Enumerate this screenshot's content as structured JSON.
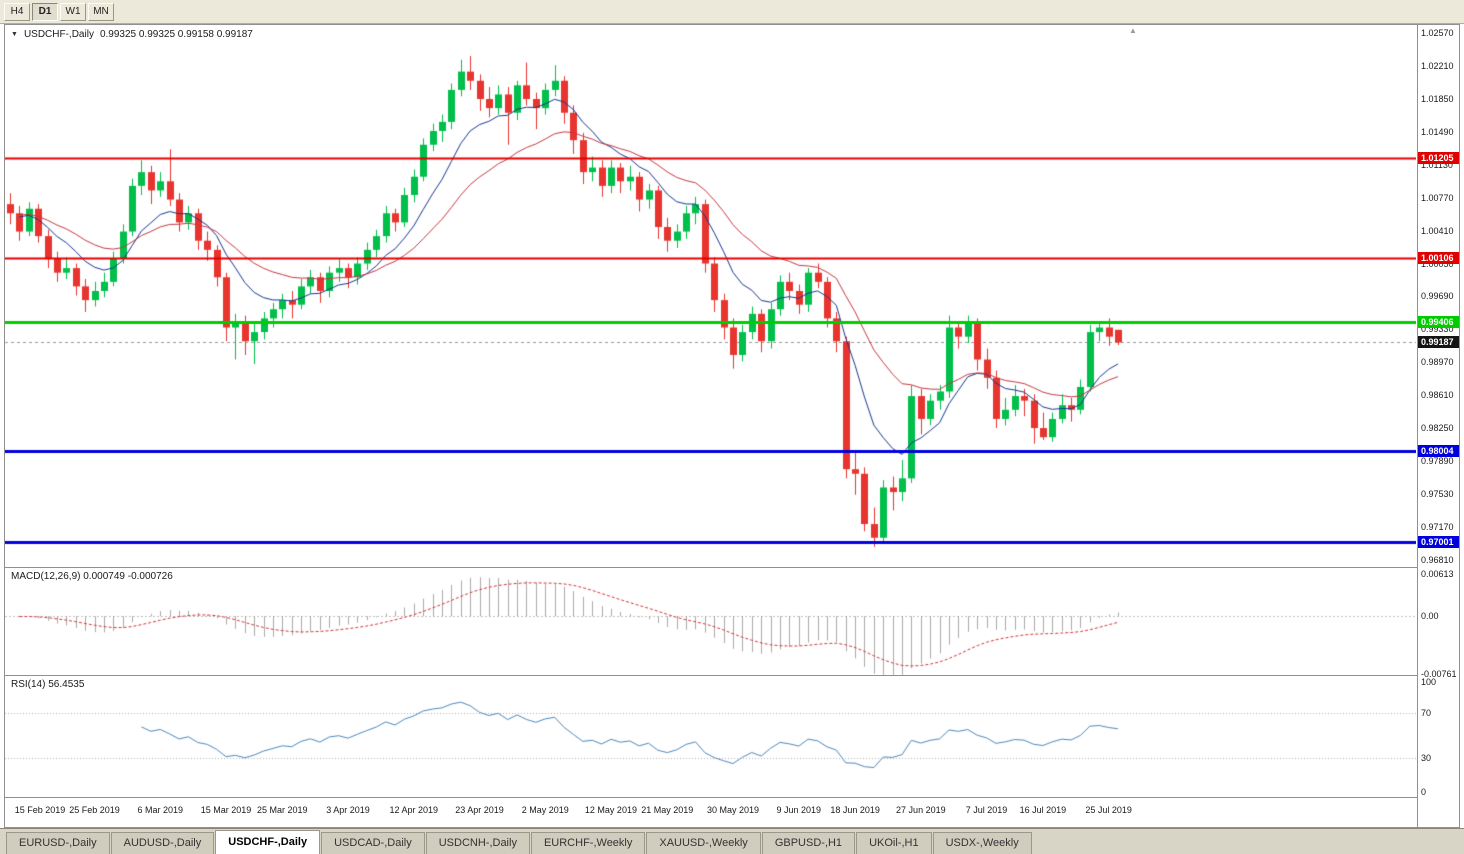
{
  "toolbar": {
    "timeframes": [
      {
        "label": "H4",
        "active": false
      },
      {
        "label": "D1",
        "active": true
      },
      {
        "label": "W1",
        "active": false
      },
      {
        "label": "MN",
        "active": false
      }
    ]
  },
  "icons": {
    "chart_menu": "▼",
    "shift_marker": "▲"
  },
  "chart": {
    "title": "USDCHF-,Daily",
    "ohlc": "0.99325 0.99325 0.99158 0.99187",
    "current_price": "0.99187",
    "current_price_color": "#141414",
    "axis_ticks": [
      "1.02570",
      "1.02210",
      "1.01850",
      "1.01490",
      "1.01130",
      "1.00770",
      "1.00410",
      "1.00050",
      "0.99690",
      "0.99330",
      "0.98970",
      "0.98610",
      "0.98250",
      "0.97890",
      "0.97530",
      "0.97170",
      "0.96810"
    ],
    "levels": [
      {
        "value": 1.01205,
        "label": "1.01205",
        "color": "#e00000",
        "width": 2
      },
      {
        "value": 1.00106,
        "label": "1.00106",
        "color": "#e00000",
        "width": 2
      },
      {
        "value": 0.99406,
        "label": "0.99406",
        "color": "#00cc00",
        "width": 3
      },
      {
        "value": 0.98004,
        "label": "0.98004",
        "color": "#0000dd",
        "width": 3
      },
      {
        "value": 0.97001,
        "label": "0.97001",
        "color": "#0000dd",
        "width": 3
      }
    ],
    "dates": [
      {
        "label": "15 Feb 2019",
        "i": 3
      },
      {
        "label": "25 Feb 2019",
        "i": 9
      },
      {
        "label": "6 Mar 2019",
        "i": 16
      },
      {
        "label": "15 Mar 2019",
        "i": 23
      },
      {
        "label": "25 Mar 2019",
        "i": 29
      },
      {
        "label": "3 Apr 2019",
        "i": 36
      },
      {
        "label": "12 Apr 2019",
        "i": 43
      },
      {
        "label": "23 Apr 2019",
        "i": 50
      },
      {
        "label": "2 May 2019",
        "i": 57
      },
      {
        "label": "12 May 2019",
        "i": 64
      },
      {
        "label": "21 May 2019",
        "i": 70
      },
      {
        "label": "30 May 2019",
        "i": 77
      },
      {
        "label": "9 Jun 2019",
        "i": 84
      },
      {
        "label": "18 Jun 2019",
        "i": 90
      },
      {
        "label": "27 Jun 2019",
        "i": 97
      },
      {
        "label": "7 Jul 2019",
        "i": 104
      },
      {
        "label": "16 Jul 2019",
        "i": 110
      },
      {
        "label": "25 Jul 2019",
        "i": 117
      }
    ]
  },
  "macd": {
    "label": "MACD(12,26,9) 0.000749 -0.000726",
    "ticks": [
      "0.00613",
      "0.00",
      "-0.00761"
    ]
  },
  "rsi": {
    "label": "RSI(14) 56.4535",
    "ticks": [
      "100",
      "70",
      "30",
      "0"
    ]
  },
  "tabs": [
    {
      "label": "EURUSD-,Daily",
      "active": false
    },
    {
      "label": "AUDUSD-,Daily",
      "active": false
    },
    {
      "label": "USDCHF-,Daily",
      "active": true
    },
    {
      "label": "USDCAD-,Daily",
      "active": false
    },
    {
      "label": "USDCNH-,Daily",
      "active": false
    },
    {
      "label": "EURCHF-,Weekly",
      "active": false
    },
    {
      "label": "XAUUSD-,Weekly",
      "active": false
    },
    {
      "label": "GBPUSD-,H1",
      "active": false
    },
    {
      "label": "UKOil-,H1",
      "active": false
    },
    {
      "label": "USDX-,Weekly",
      "active": false
    }
  ],
  "chart_data": {
    "type": "candlestick",
    "symbol": "USDCHF",
    "timeframe": "Daily",
    "ylim": [
      0.9673,
      1.0266
    ],
    "macd_ylim": [
      -0.0078,
      0.0064
    ],
    "rsi_ylim": [
      0,
      100
    ],
    "ma_fast": {
      "period": 9,
      "color": "#18368f"
    },
    "ma_slow": {
      "period": 21,
      "color": "#c43840"
    },
    "macd": {
      "fast": 12,
      "slow": 26,
      "signal": 9
    },
    "rsi_period": 14,
    "colors": {
      "up": "#00bf4a",
      "down": "#e8342e",
      "macd_hist": "#aaaaaa",
      "macd_signal": "#d23535",
      "rsi": "#4c86bc",
      "bid_line": "#9a9a9a"
    },
    "candles": [
      [
        1.007,
        1.0082,
        1.0048,
        1.006
      ],
      [
        1.006,
        1.0068,
        1.003,
        1.004
      ],
      [
        1.004,
        1.0072,
        1.0035,
        1.0065
      ],
      [
        1.0065,
        1.007,
        1.0028,
        1.0035
      ],
      [
        1.0035,
        1.0042,
        1.0,
        1.001
      ],
      [
        1.001,
        1.0018,
        0.9985,
        0.9995
      ],
      [
        0.9995,
        1.0012,
        0.9988,
        1.0
      ],
      [
        1.0,
        1.0005,
        0.997,
        0.998
      ],
      [
        0.998,
        0.9988,
        0.9952,
        0.9965
      ],
      [
        0.9965,
        0.9985,
        0.9958,
        0.9975
      ],
      [
        0.9975,
        0.9995,
        0.9968,
        0.9985
      ],
      [
        0.9985,
        1.0018,
        0.998,
        1.001
      ],
      [
        1.001,
        1.0048,
        1.0005,
        1.004
      ],
      [
        1.004,
        1.0098,
        1.0035,
        1.009
      ],
      [
        1.009,
        1.0118,
        1.008,
        1.0105
      ],
      [
        1.0105,
        1.0112,
        1.007,
        1.0085
      ],
      [
        1.0085,
        1.0105,
        1.0078,
        1.0095
      ],
      [
        1.0095,
        1.013,
        1.0068,
        1.0075
      ],
      [
        1.0075,
        1.0082,
        1.004,
        1.005
      ],
      [
        1.005,
        1.0068,
        1.0042,
        1.006
      ],
      [
        1.006,
        1.0065,
        1.002,
        1.003
      ],
      [
        1.003,
        1.004,
        1.0008,
        1.002
      ],
      [
        1.002,
        1.0025,
        0.998,
        0.999
      ],
      [
        0.999,
        0.9995,
        0.992,
        0.9935
      ],
      [
        0.9935,
        0.995,
        0.99,
        0.994
      ],
      [
        0.994,
        0.9948,
        0.9905,
        0.992
      ],
      [
        0.992,
        0.994,
        0.9895,
        0.993
      ],
      [
        0.993,
        0.9952,
        0.9922,
        0.9945
      ],
      [
        0.9945,
        0.9962,
        0.9935,
        0.9955
      ],
      [
        0.9955,
        0.9972,
        0.9945,
        0.9965
      ],
      [
        0.9965,
        0.9975,
        0.9945,
        0.996
      ],
      [
        0.996,
        0.9988,
        0.9955,
        0.998
      ],
      [
        0.998,
        0.9998,
        0.9972,
        0.999
      ],
      [
        0.999,
        0.9995,
        0.9962,
        0.9975
      ],
      [
        0.9975,
        1.0002,
        0.9968,
        0.9995
      ],
      [
        0.9995,
        1.001,
        0.9985,
        1.0
      ],
      [
        1.0,
        1.0005,
        0.9978,
        0.999
      ],
      [
        0.999,
        1.0012,
        0.9982,
        1.0005
      ],
      [
        1.0005,
        1.0028,
        0.9998,
        1.002
      ],
      [
        1.002,
        1.0042,
        1.0012,
        1.0035
      ],
      [
        1.0035,
        1.0068,
        1.0028,
        1.006
      ],
      [
        1.006,
        1.0065,
        1.004,
        1.005
      ],
      [
        1.005,
        1.0088,
        1.0045,
        1.008
      ],
      [
        1.008,
        1.0108,
        1.0072,
        1.01
      ],
      [
        1.01,
        1.0142,
        1.0095,
        1.0135
      ],
      [
        1.0135,
        1.0158,
        1.0128,
        1.015
      ],
      [
        1.015,
        1.0168,
        1.0138,
        1.016
      ],
      [
        1.016,
        1.0202,
        1.0152,
        1.0195
      ],
      [
        1.0195,
        1.0228,
        1.0188,
        1.0215
      ],
      [
        1.0215,
        1.0232,
        1.0195,
        1.0205
      ],
      [
        1.0205,
        1.0212,
        1.0172,
        1.0185
      ],
      [
        1.0185,
        1.0198,
        1.0165,
        1.0175
      ],
      [
        1.0175,
        1.02,
        1.0168,
        1.019
      ],
      [
        1.019,
        1.0198,
        1.0135,
        1.017
      ],
      [
        1.017,
        1.0205,
        1.0162,
        1.02
      ],
      [
        1.02,
        1.0225,
        1.0178,
        1.0185
      ],
      [
        1.0185,
        1.0192,
        1.0152,
        1.0175
      ],
      [
        1.0175,
        1.0202,
        1.0168,
        1.0195
      ],
      [
        1.0195,
        1.0222,
        1.0188,
        1.0205
      ],
      [
        1.0205,
        1.021,
        1.0158,
        1.017
      ],
      [
        1.017,
        1.0178,
        1.0125,
        1.014
      ],
      [
        1.014,
        1.0148,
        1.0092,
        1.0105
      ],
      [
        1.0105,
        1.0122,
        1.0095,
        1.011
      ],
      [
        1.011,
        1.0118,
        1.0078,
        1.009
      ],
      [
        1.009,
        1.0118,
        1.0082,
        1.011
      ],
      [
        1.011,
        1.0115,
        1.0082,
        1.0095
      ],
      [
        1.0095,
        1.0112,
        1.0085,
        1.01
      ],
      [
        1.01,
        1.0105,
        1.0062,
        1.0075
      ],
      [
        1.0075,
        1.0092,
        1.0065,
        1.0085
      ],
      [
        1.0085,
        1.009,
        1.0032,
        1.0045
      ],
      [
        1.0045,
        1.0055,
        1.0018,
        1.003
      ],
      [
        1.003,
        1.0048,
        1.0022,
        1.004
      ],
      [
        1.004,
        1.0068,
        1.0032,
        1.006
      ],
      [
        1.006,
        1.0078,
        1.0048,
        1.007
      ],
      [
        1.007,
        1.0075,
        0.9995,
        1.0005
      ],
      [
        1.0005,
        1.0012,
        0.9952,
        0.9965
      ],
      [
        0.9965,
        0.9972,
        0.9922,
        0.9935
      ],
      [
        0.9935,
        0.9945,
        0.989,
        0.9905
      ],
      [
        0.9905,
        0.9938,
        0.9898,
        0.993
      ],
      [
        0.993,
        0.9958,
        0.9922,
        0.995
      ],
      [
        0.995,
        0.9955,
        0.9908,
        0.992
      ],
      [
        0.992,
        0.9962,
        0.9912,
        0.9955
      ],
      [
        0.9955,
        0.9992,
        0.9948,
        0.9985
      ],
      [
        0.9985,
        0.9995,
        0.9965,
        0.9975
      ],
      [
        0.9975,
        0.9982,
        0.995,
        0.996
      ],
      [
        0.996,
        1.0,
        0.9952,
        0.9995
      ],
      [
        0.9995,
        1.0005,
        0.9978,
        0.9985
      ],
      [
        0.9985,
        0.999,
        0.9935,
        0.9945
      ],
      [
        0.9945,
        0.9952,
        0.9908,
        0.992
      ],
      [
        0.992,
        0.9925,
        0.977,
        0.978
      ],
      [
        0.978,
        0.9798,
        0.9752,
        0.9775
      ],
      [
        0.9775,
        0.9782,
        0.9712,
        0.972
      ],
      [
        0.972,
        0.9738,
        0.9695,
        0.9705
      ],
      [
        0.9705,
        0.9768,
        0.97,
        0.976
      ],
      [
        0.976,
        0.9772,
        0.9735,
        0.9755
      ],
      [
        0.9755,
        0.979,
        0.9745,
        0.977
      ],
      [
        0.977,
        0.9872,
        0.9765,
        0.986
      ],
      [
        0.986,
        0.9868,
        0.9818,
        0.9835
      ],
      [
        0.9835,
        0.9862,
        0.9828,
        0.9855
      ],
      [
        0.9855,
        0.9872,
        0.9845,
        0.9865
      ],
      [
        0.9865,
        0.9948,
        0.9858,
        0.9935
      ],
      [
        0.9935,
        0.9942,
        0.9912,
        0.9925
      ],
      [
        0.9925,
        0.9948,
        0.9918,
        0.994
      ],
      [
        0.994,
        0.9945,
        0.9888,
        0.99
      ],
      [
        0.99,
        0.9912,
        0.9868,
        0.988
      ],
      [
        0.988,
        0.9888,
        0.9825,
        0.9835
      ],
      [
        0.9835,
        0.9858,
        0.9828,
        0.9845
      ],
      [
        0.9845,
        0.9872,
        0.9838,
        0.986
      ],
      [
        0.986,
        0.9868,
        0.9838,
        0.9855
      ],
      [
        0.9855,
        0.9862,
        0.9808,
        0.9825
      ],
      [
        0.9825,
        0.9842,
        0.9812,
        0.9815
      ],
      [
        0.9815,
        0.9842,
        0.981,
        0.9835
      ],
      [
        0.9835,
        0.9862,
        0.983,
        0.985
      ],
      [
        0.985,
        0.9858,
        0.9832,
        0.9845
      ],
      [
        0.9845,
        0.9878,
        0.984,
        0.987
      ],
      [
        0.987,
        0.9938,
        0.9865,
        0.993
      ],
      [
        0.993,
        0.9942,
        0.992,
        0.9935
      ],
      [
        0.9935,
        0.9945,
        0.9915,
        0.9925
      ],
      [
        0.99325,
        0.99325,
        0.99158,
        0.99187
      ]
    ]
  }
}
